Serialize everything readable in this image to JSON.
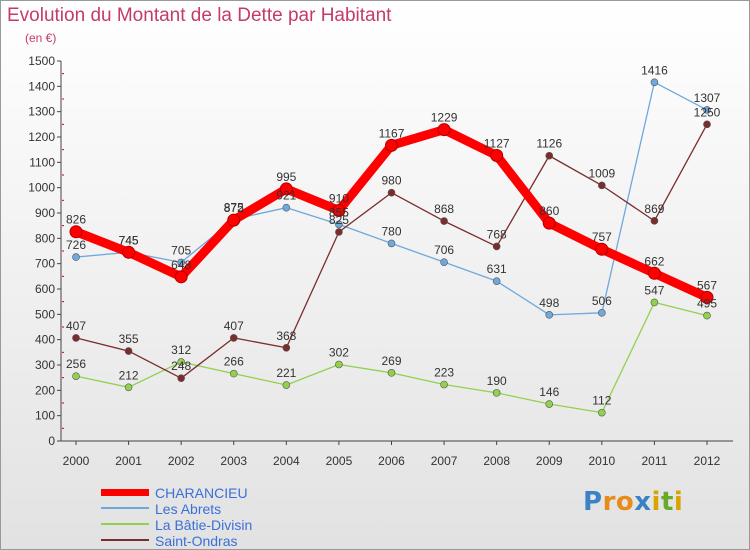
{
  "chart_data": {
    "type": "line",
    "title": "Evolution du Montant de la Dette par Habitant",
    "subtitle": "(en €)",
    "x": [
      "2000",
      "2001",
      "2002",
      "2003",
      "2004",
      "2005",
      "2006",
      "2007",
      "2008",
      "2009",
      "2010",
      "2011",
      "2012"
    ],
    "ylim": [
      0,
      1500
    ],
    "yticks": [
      0,
      100,
      200,
      300,
      400,
      500,
      600,
      700,
      800,
      900,
      1000,
      1100,
      1200,
      1300,
      1400,
      1500
    ],
    "grid": false,
    "legend_position": "bottom-left",
    "series": [
      {
        "name": "CHARANCIEU",
        "color": "#ff0000",
        "values": [
          826,
          745,
          648,
          872,
          995,
          910,
          1167,
          1229,
          1127,
          860,
          757,
          662,
          567
        ]
      },
      {
        "name": "Les Abrets",
        "color": "#6fa8dc",
        "values": [
          726,
          745,
          705,
          875,
          921,
          855,
          780,
          706,
          631,
          498,
          506,
          1416,
          1307
        ]
      },
      {
        "name": "La Bâtie-Divisin",
        "color": "#92d050",
        "values": [
          256,
          212,
          312,
          266,
          221,
          302,
          269,
          223,
          190,
          146,
          112,
          547,
          495
        ]
      },
      {
        "name": "Saint-Ondras",
        "color": "#7b2c2c",
        "values": [
          407,
          355,
          248,
          407,
          368,
          825,
          980,
          868,
          768,
          1126,
          1009,
          869,
          1250
        ]
      }
    ]
  },
  "logo": {
    "text": "Proxiti",
    "letters": [
      {
        "ch": "P",
        "color": "#3b82c4"
      },
      {
        "ch": "r",
        "color": "#e98b1a"
      },
      {
        "ch": "o",
        "color": "#e98b1a"
      },
      {
        "ch": "x",
        "color": "#3b82c4"
      },
      {
        "ch": "i",
        "color": "#d9a400"
      },
      {
        "ch": "t",
        "color": "#6aaa2a"
      },
      {
        "ch": "i",
        "color": "#d9a400"
      }
    ]
  }
}
